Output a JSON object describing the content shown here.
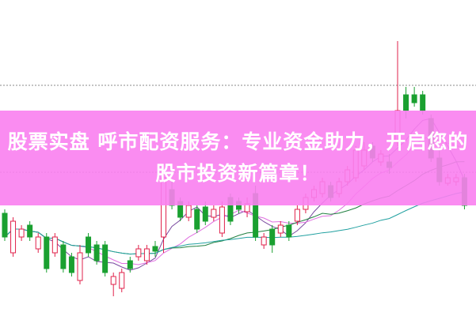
{
  "banner": {
    "title_line1": "股票实盘 呼市配资服务：专业资金助力，开启您的",
    "title_line2": "股市投资新篇章！",
    "background": "#f980f0"
  },
  "chart_data": {
    "type": "candlestick",
    "grid": "two dotted horizontal lines",
    "colors": {
      "up": "#e0204a",
      "down": "#1aa030",
      "ma5": "#7a4aa0",
      "ma10": "#e070e0",
      "ma20": "#208040",
      "ma60": "#20a0a0"
    },
    "candles": [
      [
        13,
        10,
        13.5,
        9.5
      ],
      [
        8,
        12,
        12.5,
        7.5
      ],
      [
        10,
        11,
        11.5,
        9.5
      ],
      [
        11.5,
        10,
        12,
        9.5
      ],
      [
        8.5,
        10,
        10.5,
        8
      ],
      [
        10,
        6,
        10.5,
        5.5
      ],
      [
        8,
        10,
        10.5,
        7.5
      ],
      [
        9,
        6,
        9.5,
        5.5
      ],
      [
        7.5,
        5.5,
        8,
        5
      ],
      [
        4.5,
        8,
        9,
        4
      ],
      [
        10,
        8,
        10.5,
        7.5
      ],
      [
        9,
        7,
        9.5,
        6.5
      ],
      [
        9,
        5.5,
        9.5,
        5
      ],
      [
        4,
        5,
        5.5,
        2.5
      ],
      [
        3.5,
        5.5,
        6,
        3
      ],
      [
        7,
        6,
        7.5,
        5.5
      ],
      [
        7.5,
        8.5,
        9,
        7
      ],
      [
        7,
        8.5,
        9,
        6.5
      ],
      [
        8.8,
        8.2,
        9.5,
        7.5
      ],
      [
        10,
        17.5,
        18.5,
        8
      ],
      [
        16,
        14,
        17,
        13.5
      ],
      [
        14.5,
        12.5,
        15,
        12
      ],
      [
        12.5,
        14,
        14.5,
        12
      ],
      [
        13.5,
        11,
        14,
        10.5
      ],
      [
        13.8,
        12,
        14.5,
        11.5
      ],
      [
        12.5,
        13.5,
        14,
        12
      ],
      [
        10.5,
        13.8,
        14.5,
        10
      ],
      [
        15,
        12,
        15.5,
        11.5
      ],
      [
        14.5,
        13.5,
        15,
        13
      ],
      [
        13.2,
        14.2,
        15,
        12.5
      ],
      [
        15.5,
        10,
        16.5,
        9.5
      ],
      [
        9,
        10,
        10.5,
        8.5
      ],
      [
        11,
        9,
        11.5,
        8
      ],
      [
        10.5,
        11.5,
        12,
        10
      ],
      [
        11.5,
        10,
        12,
        9.5
      ],
      [
        12,
        13.5,
        14,
        11.5
      ],
      [
        13.5,
        15,
        15.5,
        13
      ],
      [
        15,
        16,
        16.5,
        14.5
      ],
      [
        15.5,
        17,
        17.5,
        15
      ],
      [
        16.5,
        15,
        17,
        14.5
      ],
      [
        15.5,
        17,
        17.5,
        15
      ],
      [
        17,
        18.5,
        19,
        16.5
      ],
      [
        17.5,
        21,
        21.5,
        17
      ],
      [
        19,
        21,
        22,
        18.5
      ],
      [
        21.5,
        20,
        22,
        19.5
      ],
      [
        19.5,
        20.5,
        21,
        19
      ],
      [
        19.5,
        18.8,
        20.5,
        18
      ],
      [
        22,
        26,
        34.8,
        21.5
      ],
      [
        28,
        26,
        29,
        25
      ],
      [
        28,
        27,
        29,
        26.5
      ],
      [
        28,
        26,
        28.5,
        25.5
      ],
      [
        25,
        20,
        25.5,
        19.5
      ],
      [
        20,
        17,
        21,
        16.5
      ],
      [
        16.8,
        17.5,
        18,
        16.5
      ],
      [
        17,
        17.5,
        18,
        16.5
      ],
      [
        17.5,
        14,
        18,
        13.5
      ]
    ],
    "ylim": [
      0,
      40
    ]
  }
}
